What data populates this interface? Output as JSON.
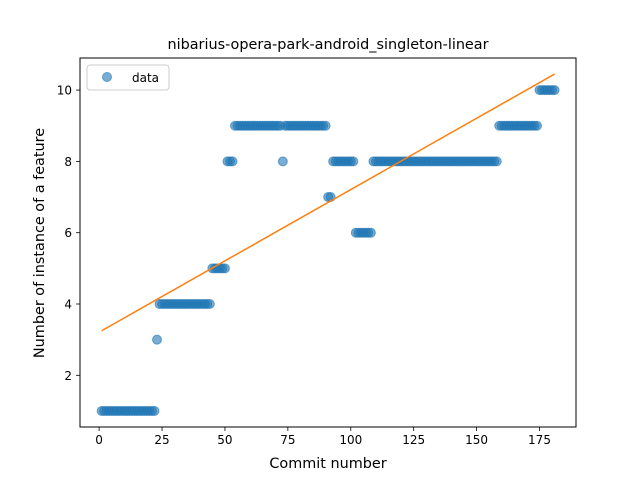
{
  "chart_data": {
    "type": "scatter",
    "title": "nibarius-opera-park-android_singleton-linear",
    "xlabel": "Commit number",
    "ylabel": "Number of instance of a feature",
    "xlim": [
      -7.6,
      189.5
    ],
    "ylim": [
      0.55,
      10.9
    ],
    "x_ticks": [
      0,
      25,
      50,
      75,
      100,
      125,
      150,
      175
    ],
    "y_ticks": [
      2,
      4,
      6,
      8,
      10
    ],
    "legend": {
      "position": "top-left",
      "entries": [
        "data"
      ]
    },
    "colors": {
      "data": "#1f77b4",
      "fit": "#ff7f0e"
    },
    "series": [
      {
        "name": "data",
        "style": "markers",
        "segments": [
          {
            "x_start": 1,
            "x_end": 22,
            "y": 1
          },
          {
            "x_start": 23,
            "x_end": 23,
            "y": 3
          },
          {
            "x_start": 24,
            "x_end": 44,
            "y": 4
          },
          {
            "x_start": 45,
            "x_end": 50,
            "y": 5
          },
          {
            "x_start": 51,
            "x_end": 53,
            "y": 8
          },
          {
            "x_start": 54,
            "x_end": 72,
            "y": 9
          },
          {
            "x_start": 73,
            "x_end": 73,
            "y": 8
          },
          {
            "x_start": 74,
            "x_end": 90,
            "y": 9
          },
          {
            "x_start": 91,
            "x_end": 92,
            "y": 7
          },
          {
            "x_start": 93,
            "x_end": 101,
            "y": 8
          },
          {
            "x_start": 102,
            "x_end": 108,
            "y": 6
          },
          {
            "x_start": 109,
            "x_end": 158,
            "y": 8
          },
          {
            "x_start": 159,
            "x_end": 174,
            "y": 9
          },
          {
            "x_start": 175,
            "x_end": 181,
            "y": 10
          }
        ]
      },
      {
        "name": "",
        "style": "line",
        "points": [
          [
            1,
            3.25
          ],
          [
            181,
            10.45
          ]
        ]
      }
    ]
  }
}
